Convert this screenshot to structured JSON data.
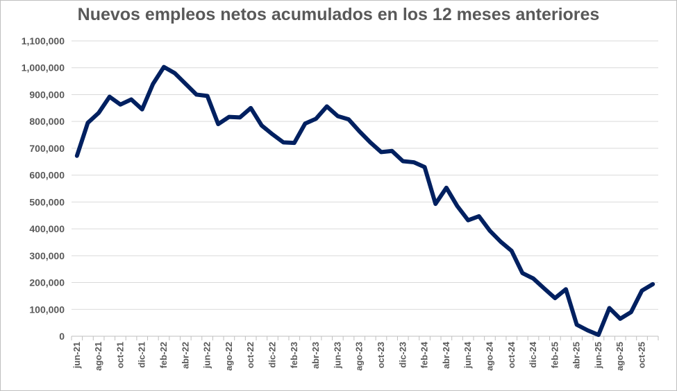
{
  "chart_data": {
    "type": "line",
    "title": "Nuevos empleos netos acumulados en los 12 meses anteriores",
    "xlabel": "",
    "ylabel": "",
    "ylim": [
      0,
      1100000
    ],
    "yticks": [
      0,
      100000,
      200000,
      300000,
      400000,
      500000,
      600000,
      700000,
      800000,
      900000,
      1000000,
      1100000
    ],
    "ytick_labels": [
      "0",
      "100,000",
      "200,000",
      "300,000",
      "400,000",
      "500,000",
      "600,000",
      "700,000",
      "800,000",
      "900,000",
      "1,000,000",
      "1,100,000"
    ],
    "x_tick_labels": [
      "jun-21",
      "ago-21",
      "oct-21",
      "dic-21",
      "feb-22",
      "abr-22",
      "jun-22",
      "ago-22",
      "oct-22",
      "dic-22",
      "feb-23",
      "abr-23",
      "jun-23",
      "ago-23",
      "oct-23",
      "dic-23",
      "feb-24",
      "abr-24",
      "jun-24",
      "ago-24",
      "oct-24",
      "dic-24",
      "feb-25",
      "abr-25",
      "jun-25",
      "ago-25",
      "oct-25"
    ],
    "grid": true,
    "line_color": "#002060",
    "series": [
      {
        "name": "Nuevos empleos netos acumulados",
        "values": [
          672000,
          795000,
          832000,
          892000,
          863000,
          882000,
          845000,
          940000,
          1003000,
          980000,
          940000,
          900000,
          895000,
          790000,
          817000,
          815000,
          850000,
          785000,
          752000,
          722000,
          720000,
          792000,
          810000,
          856000,
          820000,
          808000,
          763000,
          722000,
          686000,
          690000,
          652000,
          648000,
          630000,
          493000,
          553000,
          485000,
          432000,
          447000,
          393000,
          352000,
          318000,
          235000,
          215000,
          178000,
          142000,
          175000,
          43000,
          22000,
          5000,
          105000,
          65000,
          90000,
          170000,
          194000
        ]
      }
    ]
  }
}
